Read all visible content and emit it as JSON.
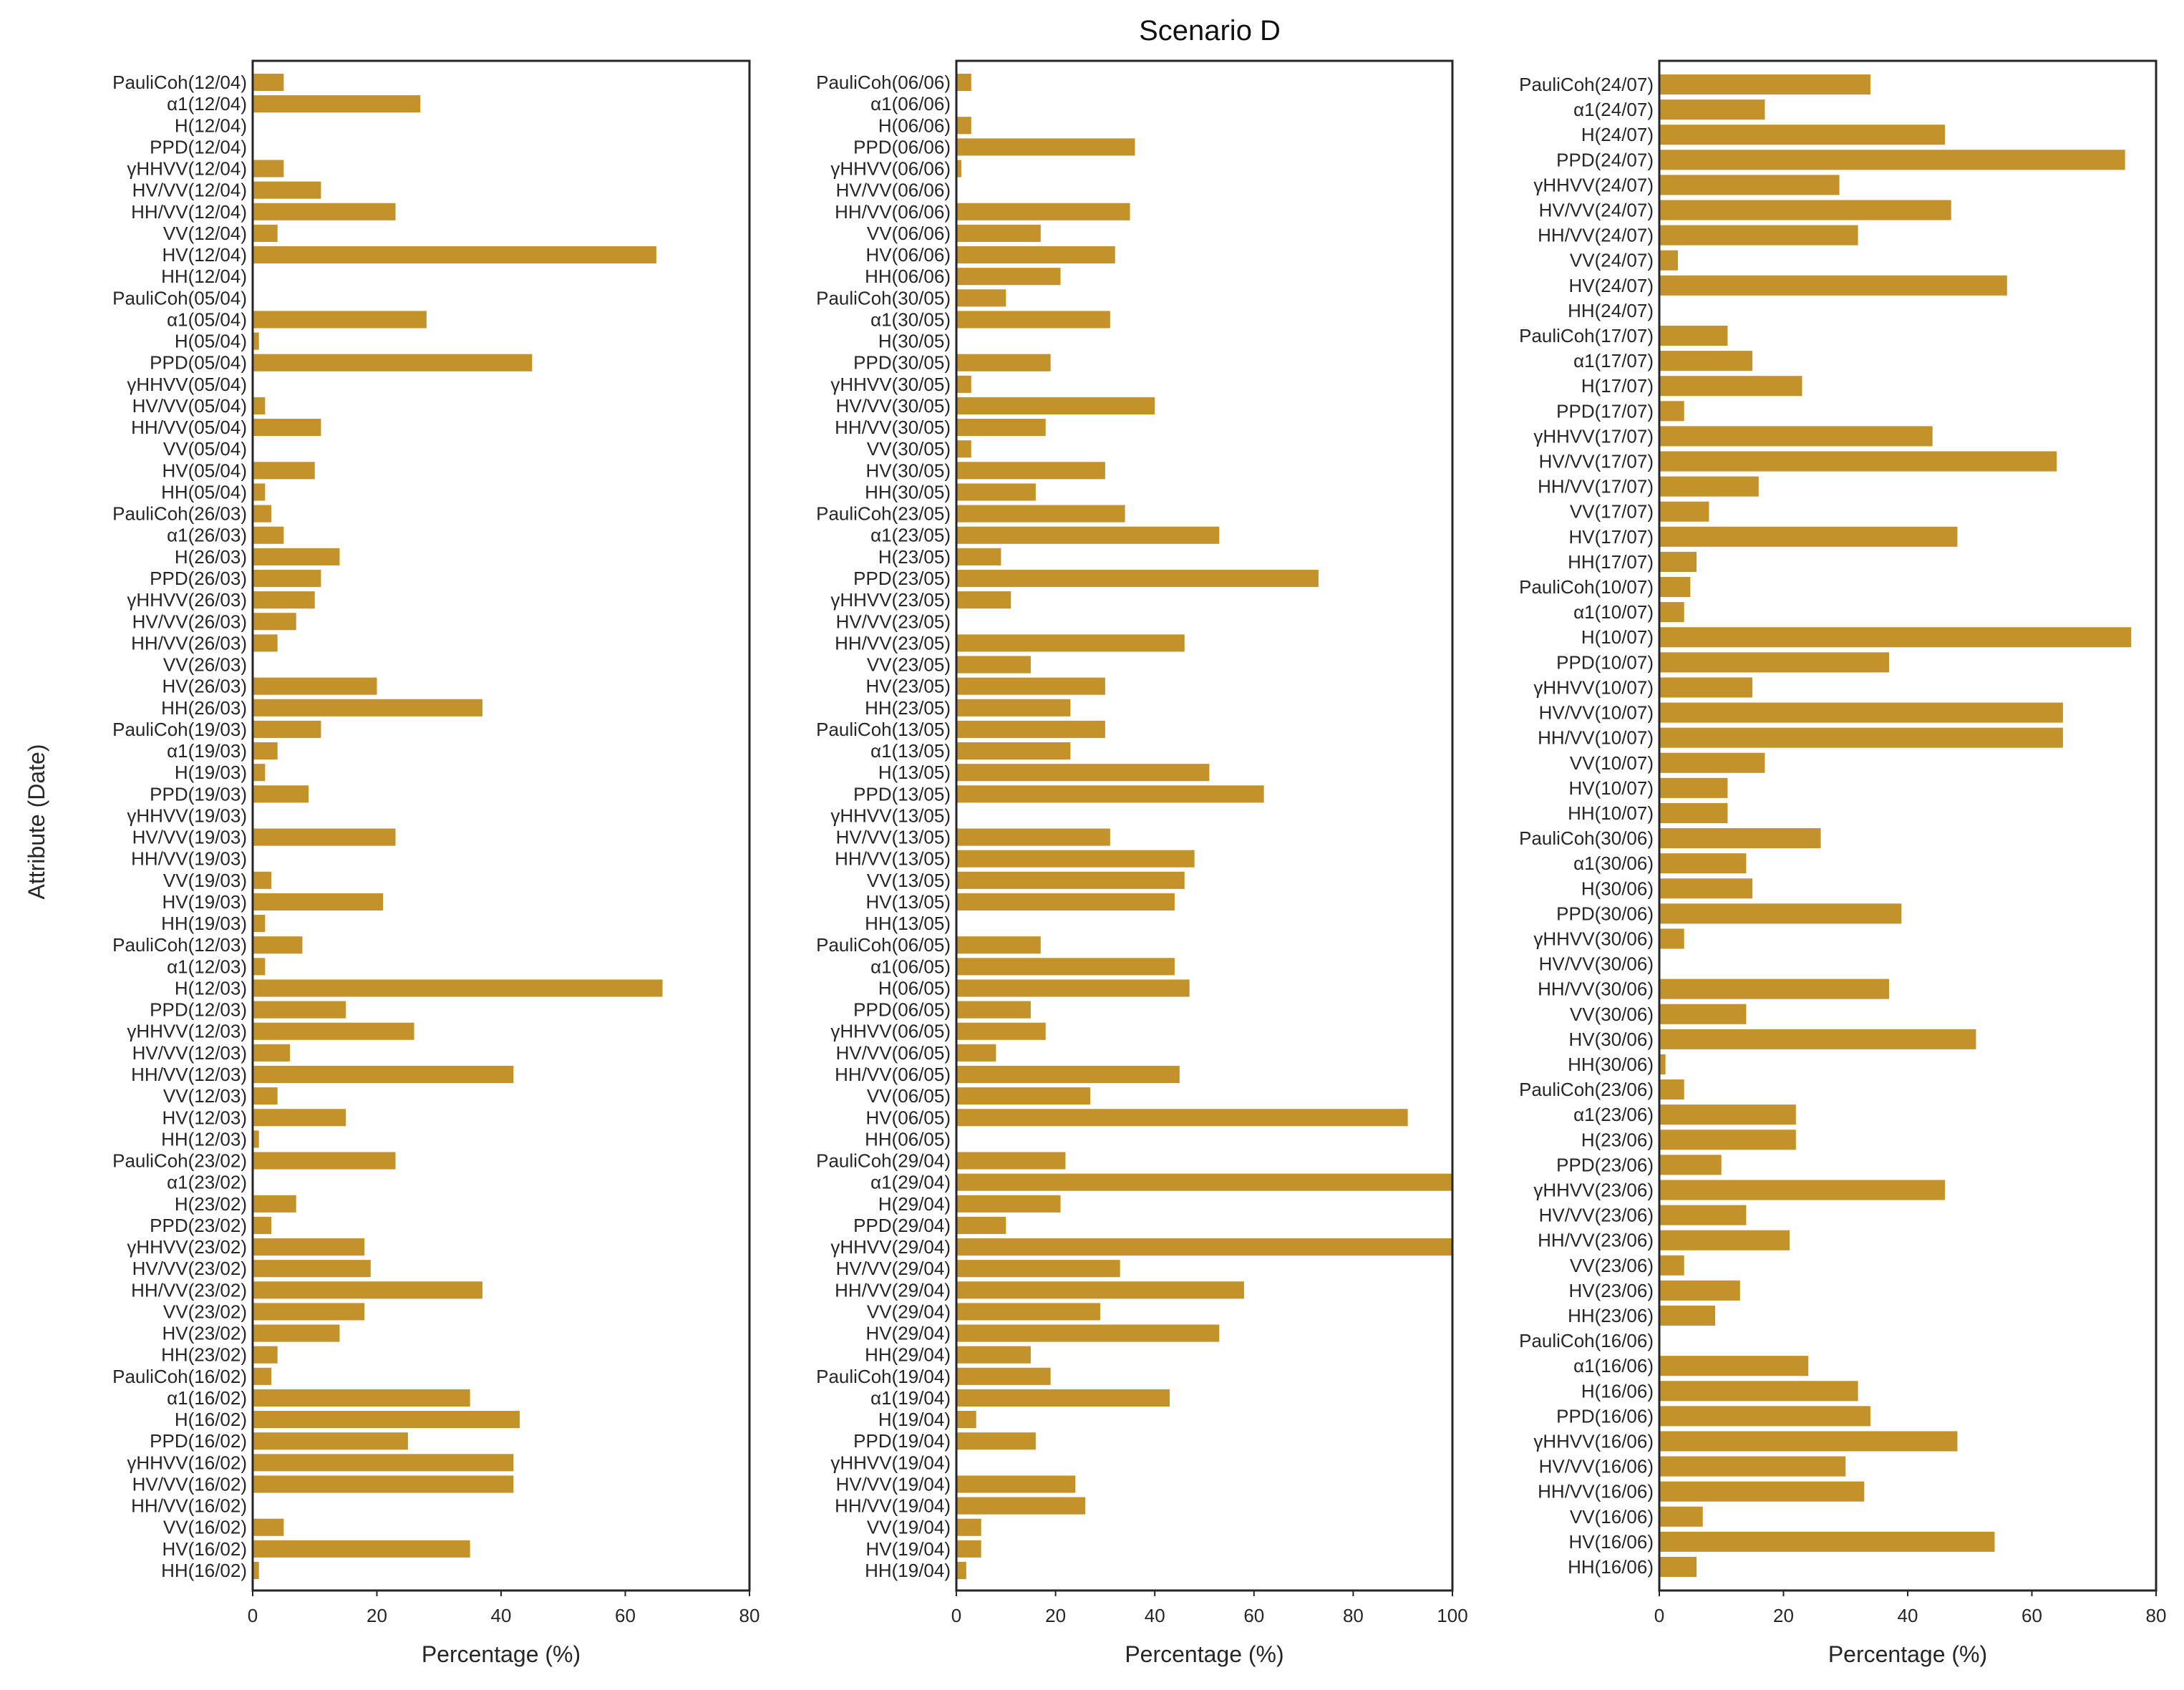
{
  "chart_data": {
    "type": "bar",
    "orientation": "horizontal",
    "title": "Scenario D",
    "ylabel": "Attribute (Date)",
    "color": "#C4922A",
    "panels": [
      {
        "xlabel": "Percentage (%)",
        "xlim": [
          0,
          80
        ],
        "xticks": [
          "0",
          "20",
          "40",
          "60",
          "80"
        ],
        "categories": [
          "PauliCoh(12/04)",
          "α1(12/04)",
          "H(12/04)",
          "PPD(12/04)",
          "γHHVV(12/04)",
          "HV/VV(12/04)",
          "HH/VV(12/04)",
          "VV(12/04)",
          "HV(12/04)",
          "HH(12/04)",
          "PauliCoh(05/04)",
          "α1(05/04)",
          "H(05/04)",
          "PPD(05/04)",
          "γHHVV(05/04)",
          "HV/VV(05/04)",
          "HH/VV(05/04)",
          "VV(05/04)",
          "HV(05/04)",
          "HH(05/04)",
          "PauliCoh(26/03)",
          "α1(26/03)",
          "H(26/03)",
          "PPD(26/03)",
          "γHHVV(26/03)",
          "HV/VV(26/03)",
          "HH/VV(26/03)",
          "VV(26/03)",
          "HV(26/03)",
          "HH(26/03)",
          "PauliCoh(19/03)",
          "α1(19/03)",
          "H(19/03)",
          "PPD(19/03)",
          "γHHVV(19/03)",
          "HV/VV(19/03)",
          "HH/VV(19/03)",
          "VV(19/03)",
          "HV(19/03)",
          "HH(19/03)",
          "PauliCoh(12/03)",
          "α1(12/03)",
          "H(12/03)",
          "PPD(12/03)",
          "γHHVV(12/03)",
          "HV/VV(12/03)",
          "HH/VV(12/03)",
          "VV(12/03)",
          "HV(12/03)",
          "HH(12/03)",
          "PauliCoh(23/02)",
          "α1(23/02)",
          "H(23/02)",
          "PPD(23/02)",
          "γHHVV(23/02)",
          "HV/VV(23/02)",
          "HH/VV(23/02)",
          "VV(23/02)",
          "HV(23/02)",
          "HH(23/02)",
          "PauliCoh(16/02)",
          "α1(16/02)",
          "H(16/02)",
          "PPD(16/02)",
          "γHHVV(16/02)",
          "HV/VV(16/02)",
          "HH/VV(16/02)",
          "VV(16/02)",
          "HV(16/02)",
          "HH(16/02)"
        ],
        "values": [
          5,
          27,
          0,
          0,
          5,
          11,
          23,
          4,
          65,
          0,
          0,
          28,
          1,
          45,
          0,
          2,
          11,
          0,
          10,
          2,
          3,
          5,
          14,
          11,
          10,
          7,
          4,
          0,
          20,
          37,
          11,
          4,
          2,
          9,
          0,
          23,
          0,
          3,
          21,
          2,
          8,
          2,
          66,
          15,
          26,
          6,
          42,
          4,
          15,
          1,
          23,
          0,
          7,
          3,
          18,
          19,
          37,
          18,
          14,
          4,
          3,
          35,
          43,
          25,
          42,
          42,
          0,
          5,
          35,
          1
        ]
      },
      {
        "xlabel": "Percentage (%)",
        "xlim": [
          0,
          100
        ],
        "xticks": [
          "0",
          "20",
          "40",
          "60",
          "80",
          "100"
        ],
        "categories": [
          "PauliCoh(06/06)",
          "α1(06/06)",
          "H(06/06)",
          "PPD(06/06)",
          "γHHVV(06/06)",
          "HV/VV(06/06)",
          "HH/VV(06/06)",
          "VV(06/06)",
          "HV(06/06)",
          "HH(06/06)",
          "PauliCoh(30/05)",
          "α1(30/05)",
          "H(30/05)",
          "PPD(30/05)",
          "γHHVV(30/05)",
          "HV/VV(30/05)",
          "HH/VV(30/05)",
          "VV(30/05)",
          "HV(30/05)",
          "HH(30/05)",
          "PauliCoh(23/05)",
          "α1(23/05)",
          "H(23/05)",
          "PPD(23/05)",
          "γHHVV(23/05)",
          "HV/VV(23/05)",
          "HH/VV(23/05)",
          "VV(23/05)",
          "HV(23/05)",
          "HH(23/05)",
          "PauliCoh(13/05)",
          "α1(13/05)",
          "H(13/05)",
          "PPD(13/05)",
          "γHHVV(13/05)",
          "HV/VV(13/05)",
          "HH/VV(13/05)",
          "VV(13/05)",
          "HV(13/05)",
          "HH(13/05)",
          "PauliCoh(06/05)",
          "α1(06/05)",
          "H(06/05)",
          "PPD(06/05)",
          "γHHVV(06/05)",
          "HV/VV(06/05)",
          "HH/VV(06/05)",
          "VV(06/05)",
          "HV(06/05)",
          "HH(06/05)",
          "PauliCoh(29/04)",
          "α1(29/04)",
          "H(29/04)",
          "PPD(29/04)",
          "γHHVV(29/04)",
          "HV/VV(29/04)",
          "HH/VV(29/04)",
          "VV(29/04)",
          "HV(29/04)",
          "HH(29/04)",
          "PauliCoh(19/04)",
          "α1(19/04)",
          "H(19/04)",
          "PPD(19/04)",
          "γHHVV(19/04)",
          "HV/VV(19/04)",
          "HH/VV(19/04)",
          "VV(19/04)",
          "HV(19/04)",
          "HH(19/04)"
        ],
        "values": [
          3,
          0,
          3,
          36,
          1,
          0,
          35,
          17,
          32,
          21,
          10,
          31,
          0,
          19,
          3,
          40,
          18,
          3,
          30,
          16,
          34,
          53,
          9,
          73,
          11,
          0,
          46,
          15,
          30,
          23,
          30,
          23,
          51,
          62,
          0,
          31,
          48,
          46,
          44,
          0,
          17,
          44,
          47,
          15,
          18,
          8,
          45,
          27,
          91,
          0,
          22,
          100,
          21,
          10,
          100,
          33,
          58,
          29,
          53,
          15,
          19,
          43,
          4,
          16,
          0,
          24,
          26,
          5,
          5,
          2
        ]
      },
      {
        "xlabel": "Percentage (%)",
        "xlim": [
          0,
          80
        ],
        "xticks": [
          "0",
          "20",
          "40",
          "60",
          "80"
        ],
        "categories": [
          "PauliCoh(24/07)",
          "α1(24/07)",
          "H(24/07)",
          "PPD(24/07)",
          "γHHVV(24/07)",
          "HV/VV(24/07)",
          "HH/VV(24/07)",
          "VV(24/07)",
          "HV(24/07)",
          "HH(24/07)",
          "PauliCoh(17/07)",
          "α1(17/07)",
          "H(17/07)",
          "PPD(17/07)",
          "γHHVV(17/07)",
          "HV/VV(17/07)",
          "HH/VV(17/07)",
          "VV(17/07)",
          "HV(17/07)",
          "HH(17/07)",
          "PauliCoh(10/07)",
          "α1(10/07)",
          "H(10/07)",
          "PPD(10/07)",
          "γHHVV(10/07)",
          "HV/VV(10/07)",
          "HH/VV(10/07)",
          "VV(10/07)",
          "HV(10/07)",
          "HH(10/07)",
          "PauliCoh(30/06)",
          "α1(30/06)",
          "H(30/06)",
          "PPD(30/06)",
          "γHHVV(30/06)",
          "HV/VV(30/06)",
          "HH/VV(30/06)",
          "VV(30/06)",
          "HV(30/06)",
          "HH(30/06)",
          "PauliCoh(23/06)",
          "α1(23/06)",
          "H(23/06)",
          "PPD(23/06)",
          "γHHVV(23/06)",
          "HV/VV(23/06)",
          "HH/VV(23/06)",
          "VV(23/06)",
          "HV(23/06)",
          "HH(23/06)",
          "PauliCoh(16/06)",
          "α1(16/06)",
          "H(16/06)",
          "PPD(16/06)",
          "γHHVV(16/06)",
          "HV/VV(16/06)",
          "HH/VV(16/06)",
          "VV(16/06)",
          "HV(16/06)",
          "HH(16/06)"
        ],
        "values": [
          34,
          17,
          46,
          75,
          29,
          47,
          32,
          3,
          56,
          0,
          11,
          15,
          23,
          4,
          44,
          64,
          16,
          8,
          48,
          6,
          5,
          4,
          76,
          37,
          15,
          65,
          65,
          17,
          11,
          11,
          26,
          14,
          15,
          39,
          4,
          0,
          37,
          14,
          51,
          1,
          4,
          22,
          22,
          10,
          46,
          14,
          21,
          4,
          13,
          9,
          0,
          24,
          32,
          34,
          48,
          30,
          33,
          7,
          54,
          6
        ]
      }
    ]
  }
}
